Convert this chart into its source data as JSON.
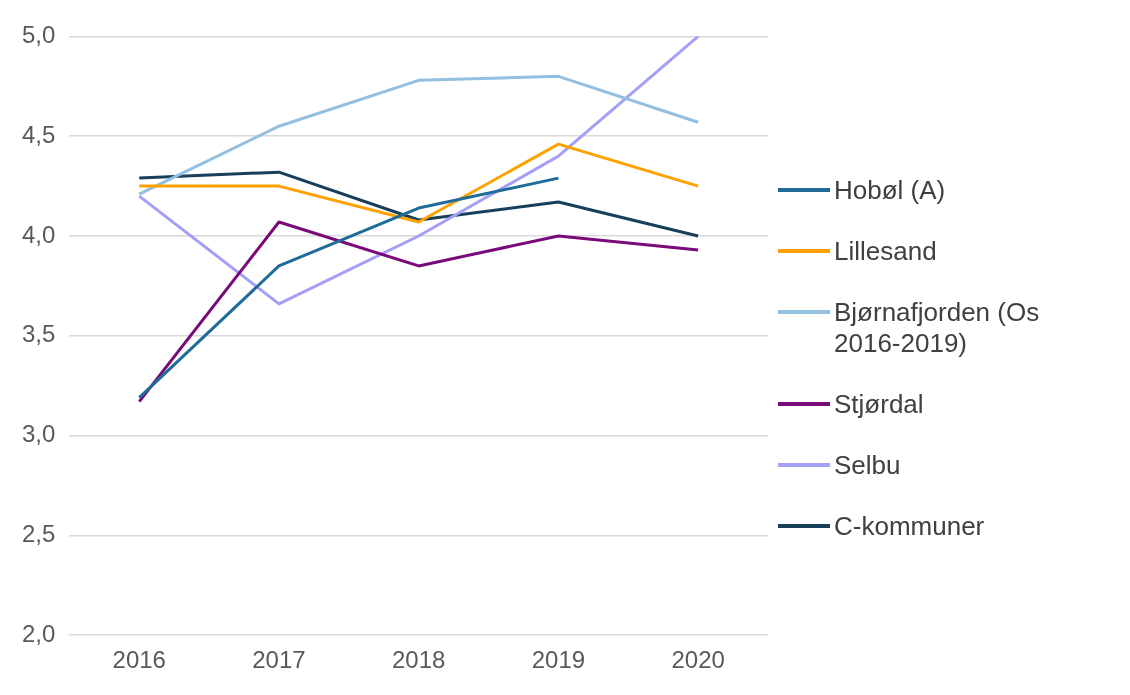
{
  "chart_data": {
    "type": "line",
    "categories": [
      "2016",
      "2017",
      "2018",
      "2019",
      "2020"
    ],
    "series": [
      {
        "name": "Hobøl (A)",
        "color": "#1f6b99",
        "values": [
          3.19,
          3.85,
          4.14,
          4.29,
          null
        ]
      },
      {
        "name": "Lillesand",
        "color": "#ffa200",
        "values": [
          4.25,
          4.25,
          4.07,
          4.46,
          4.25
        ]
      },
      {
        "name": "Bjørnafjorden (Os 2016-2019)",
        "color": "#93bfe0",
        "values": [
          4.21,
          4.55,
          4.78,
          4.8,
          4.57
        ]
      },
      {
        "name": "Stjørdal",
        "color": "#7a0a7a",
        "values": [
          3.17,
          4.07,
          3.85,
          4.0,
          3.93
        ]
      },
      {
        "name": "Selbu",
        "color": "#a3a0f5",
        "values": [
          4.2,
          3.66,
          4.0,
          4.4,
          5.0
        ]
      },
      {
        "name": "C-kommuner",
        "color": "#173f5a",
        "values": [
          4.29,
          4.32,
          4.08,
          4.17,
          4.0
        ]
      }
    ],
    "ylim": [
      2,
      5
    ],
    "yticks": [
      {
        "value": 2,
        "label": "2,0"
      },
      {
        "value": 2.5,
        "label": "2,5"
      },
      {
        "value": 3,
        "label": "3,0"
      },
      {
        "value": 3.5,
        "label": "3,5"
      },
      {
        "value": 4,
        "label": "4,0"
      },
      {
        "value": 4.5,
        "label": "4,5"
      },
      {
        "value": 5,
        "label": "5,0"
      }
    ],
    "grid": "y",
    "legend": "right",
    "marker": "none",
    "line_style": "solid"
  }
}
